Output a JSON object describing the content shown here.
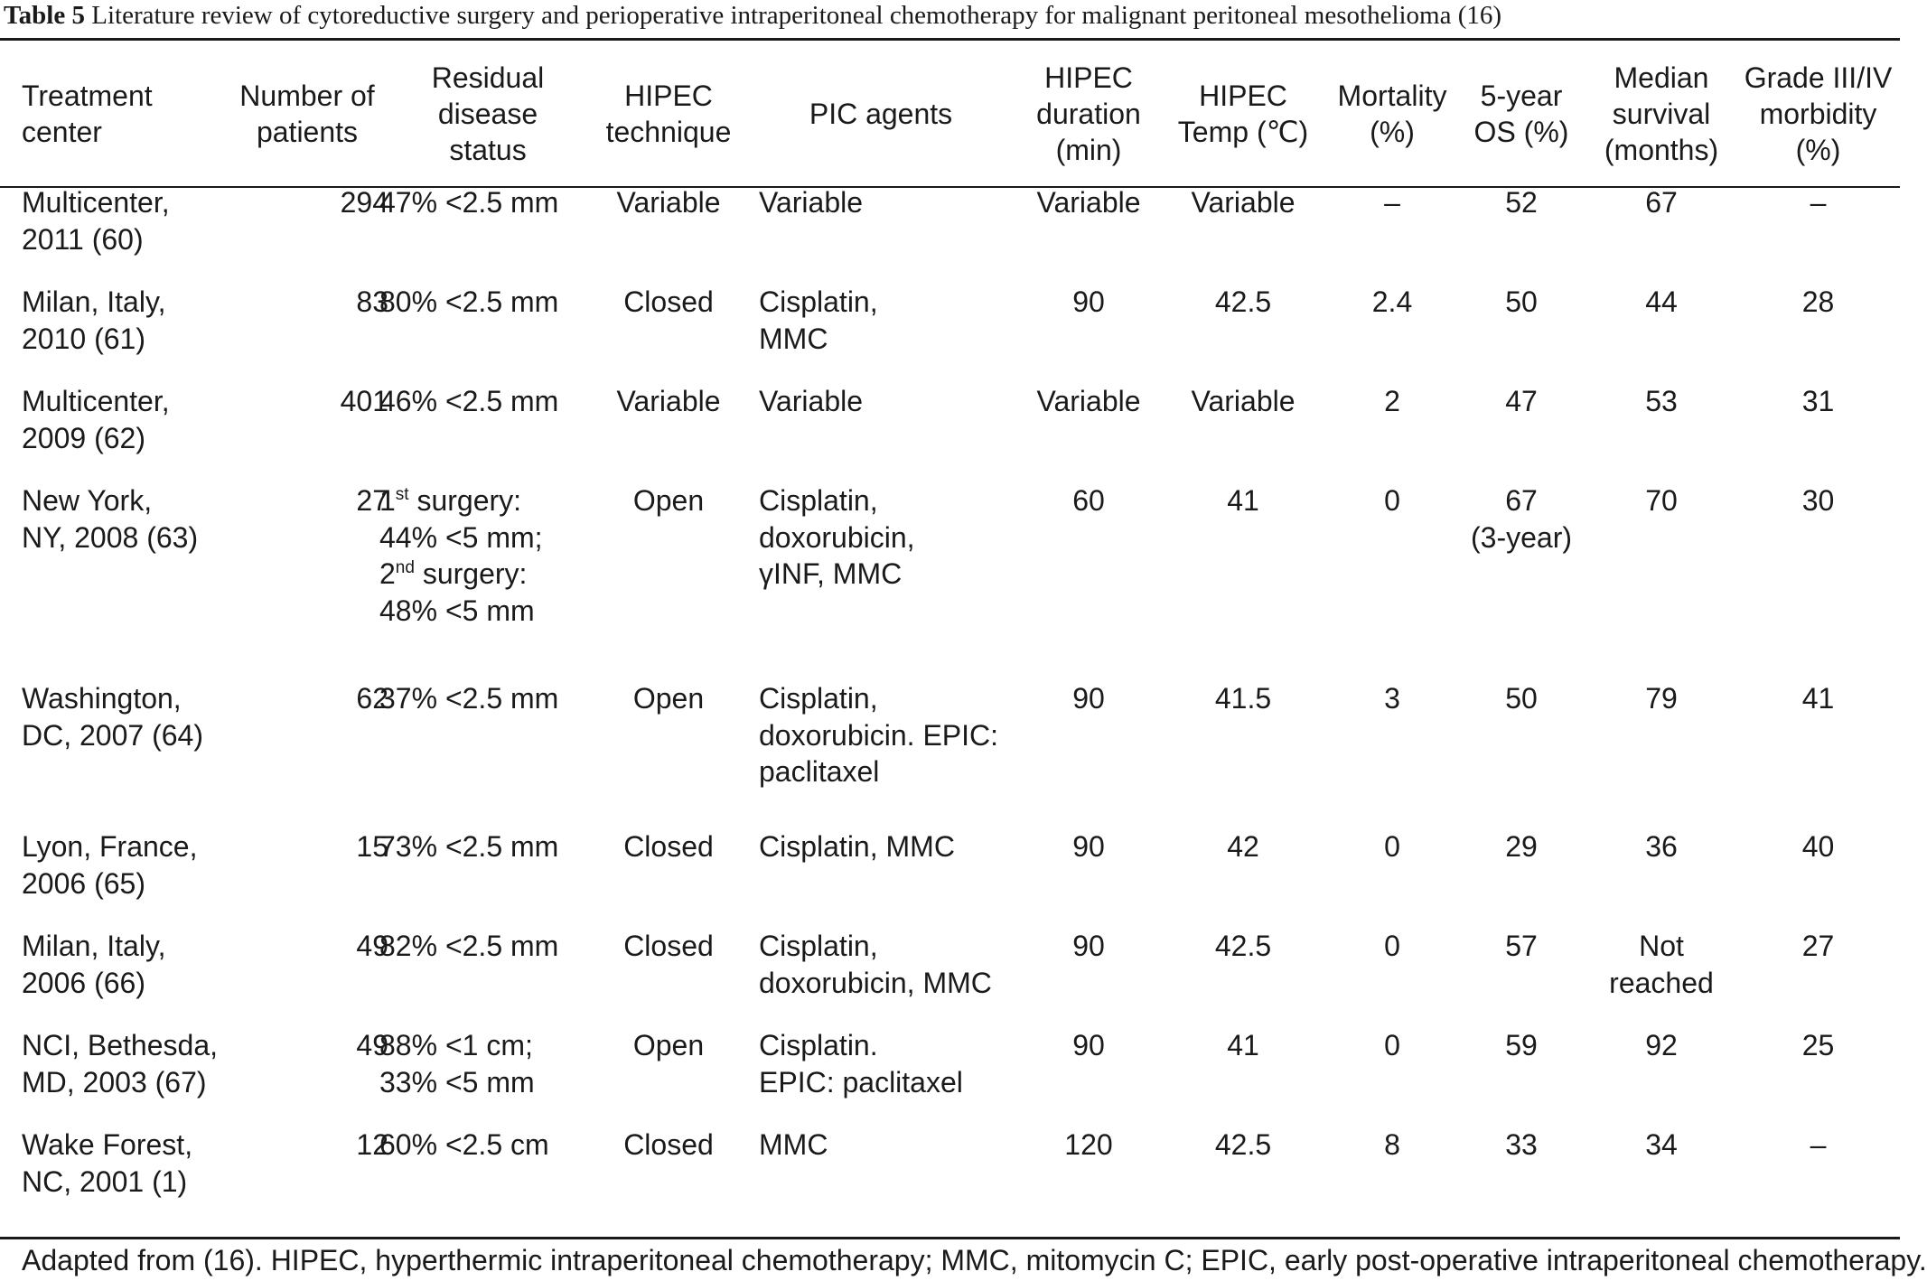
{
  "caption": {
    "label": "Table 5",
    "text": " Literature review of cytoreductive surgery and perioperative intraperitoneal chemotherapy for malignant peritoneal mesothelioma (16)"
  },
  "headers": [
    [
      "Treatment",
      "center"
    ],
    [
      "Number of",
      "patients"
    ],
    [
      "Residual",
      "disease",
      "status"
    ],
    [
      "HIPEC",
      "technique"
    ],
    [
      "PIC agents"
    ],
    [
      "HIPEC",
      "duration",
      "(min)"
    ],
    [
      "HIPEC",
      "Temp (℃)"
    ],
    [
      "Mortality",
      "(%)"
    ],
    [
      "5-year",
      "OS (%)"
    ],
    [
      "Median",
      "survival",
      "(months)"
    ],
    [
      "Grade III/IV",
      "morbidity",
      "(%)"
    ]
  ],
  "rows": [
    {
      "center": [
        "Multicenter,",
        "2011 (60)"
      ],
      "patients": "294",
      "residual": [
        "47% <2.5 mm"
      ],
      "technique": "Variable",
      "agents": [
        "Variable"
      ],
      "duration": "Variable",
      "temp": "Variable",
      "mortality": "–",
      "os": [
        "52"
      ],
      "survival": [
        "67"
      ],
      "morbidity": "–"
    },
    {
      "center": [
        "Milan, Italy,",
        "2010 (61)"
      ],
      "patients": "83",
      "residual": [
        "80% <2.5 mm"
      ],
      "technique": "Closed",
      "agents": [
        "Cisplatin,",
        "MMC"
      ],
      "duration": "90",
      "temp": "42.5",
      "mortality": "2.4",
      "os": [
        "50"
      ],
      "survival": [
        "44"
      ],
      "morbidity": "28"
    },
    {
      "center": [
        "Multicenter,",
        "2009 (62)"
      ],
      "patients": "401",
      "residual": [
        "46% <2.5 mm"
      ],
      "technique": "Variable",
      "agents": [
        "Variable"
      ],
      "duration": "Variable",
      "temp": "Variable",
      "mortality": "2",
      "os": [
        "47"
      ],
      "survival": [
        "53"
      ],
      "morbidity": "31"
    },
    {
      "center": [
        "New York,",
        "NY, 2008 (63)"
      ],
      "patients": "27",
      "residual": [
        "1|st| surgery:",
        "44% <5 mm;",
        "2|nd| surgery:",
        "48% <5 mm"
      ],
      "technique": "Open",
      "agents": [
        "Cisplatin,",
        "doxorubicin,",
        "γINF, MMC"
      ],
      "duration": "60",
      "temp": "41",
      "mortality": "0",
      "os": [
        "67",
        "(3-year)"
      ],
      "survival": [
        "70"
      ],
      "morbidity": "30"
    },
    {
      "center": [
        "Washington,",
        "DC, 2007 (64)"
      ],
      "patients": "62",
      "residual": [
        "37% <2.5 mm"
      ],
      "technique": "Open",
      "agents": [
        "Cisplatin,",
        "doxorubicin. EPIC:",
        "paclitaxel"
      ],
      "duration": "90",
      "temp": "41.5",
      "mortality": "3",
      "os": [
        "50"
      ],
      "survival": [
        "79"
      ],
      "morbidity": "41"
    },
    {
      "center": [
        "Lyon, France,",
        "2006 (65)"
      ],
      "patients": "15",
      "residual": [
        "73% <2.5 mm"
      ],
      "technique": "Closed",
      "agents": [
        "Cisplatin, MMC"
      ],
      "duration": "90",
      "temp": "42",
      "mortality": "0",
      "os": [
        "29"
      ],
      "survival": [
        "36"
      ],
      "morbidity": "40"
    },
    {
      "center": [
        "Milan, Italy,",
        "2006 (66)"
      ],
      "patients": "49",
      "residual": [
        "82% <2.5 mm"
      ],
      "technique": "Closed",
      "agents": [
        "Cisplatin,",
        "doxorubicin, MMC"
      ],
      "duration": "90",
      "temp": "42.5",
      "mortality": "0",
      "os": [
        "57"
      ],
      "survival": [
        "Not",
        "reached"
      ],
      "morbidity": "27"
    },
    {
      "center": [
        "NCI, Bethesda,",
        "MD, 2003 (67)"
      ],
      "patients": "49",
      "residual": [
        "88% <1 cm;",
        "33% <5 mm"
      ],
      "technique": "Open",
      "agents": [
        "Cisplatin.",
        "EPIC: paclitaxel"
      ],
      "duration": "90",
      "temp": "41",
      "mortality": "0",
      "os": [
        "59"
      ],
      "survival": [
        "92"
      ],
      "morbidity": "25"
    },
    {
      "center": [
        "Wake Forest,",
        "NC, 2001 (1)"
      ],
      "patients": "12",
      "residual": [
        "60% <2.5 cm"
      ],
      "technique": "Closed",
      "agents": [
        "MMC"
      ],
      "duration": "120",
      "temp": "42.5",
      "mortality": "8",
      "os": [
        "33"
      ],
      "survival": [
        "34"
      ],
      "morbidity": "–"
    }
  ],
  "footnote": "Adapted from (16). HIPEC, hyperthermic intraperitoneal chemotherapy; MMC, mitomycin C; EPIC, early post-operative intraperitoneal chemotherapy."
}
